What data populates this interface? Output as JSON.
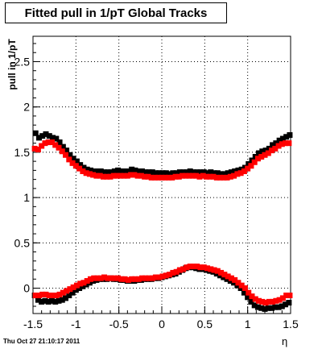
{
  "title": "Fitted pull in 1/pT  Global Tracks",
  "timestamp": "Thu Oct 27 21:10:17 2011",
  "chart_data": {
    "type": "scatter",
    "title": "Fitted pull in 1/pT  Global Tracks",
    "xlabel": "η",
    "ylabel": "pull in 1/pT",
    "xlim": [
      -1.5,
      1.5
    ],
    "ylim": [
      -0.28,
      2.78
    ],
    "x_ticks": [
      -1.5,
      -1,
      -0.5,
      0,
      0.5,
      1,
      1.5
    ],
    "x_tick_labels": [
      "-1.5",
      "-1",
      "-0.5",
      "0",
      "0.5",
      "1",
      "1.5"
    ],
    "y_ticks": [
      0,
      0.5,
      1,
      1.5,
      2,
      2.5
    ],
    "y_tick_labels": [
      "0",
      "0.5",
      "1",
      "1.5",
      "2",
      "2.5"
    ],
    "grid": true,
    "marker": "square",
    "series": [
      {
        "color": "#000000",
        "x": [
          -1.47,
          -1.43,
          -1.39,
          -1.35,
          -1.31,
          -1.27,
          -1.23,
          -1.19,
          -1.15,
          -1.11,
          -1.07,
          -1.03,
          -0.99,
          -0.95,
          -0.91,
          -0.87,
          -0.83,
          -0.79,
          -0.75,
          -0.71,
          -0.67,
          -0.63,
          -0.59,
          -0.55,
          -0.51,
          -0.47,
          -0.43,
          -0.39,
          -0.35,
          -0.31,
          -0.27,
          -0.23,
          -0.19,
          -0.15,
          -0.11,
          -0.07,
          -0.03,
          0.01,
          0.05,
          0.09,
          0.13,
          0.17,
          0.21,
          0.25,
          0.29,
          0.33,
          0.37,
          0.41,
          0.45,
          0.49,
          0.53,
          0.57,
          0.61,
          0.65,
          0.69,
          0.73,
          0.77,
          0.81,
          0.85,
          0.89,
          0.93,
          0.97,
          1.01,
          1.05,
          1.09,
          1.13,
          1.17,
          1.21,
          1.25,
          1.29,
          1.33,
          1.37,
          1.41,
          1.45,
          1.49
        ],
        "y": [
          1.71,
          1.66,
          1.68,
          1.7,
          1.68,
          1.66,
          1.65,
          1.61,
          1.56,
          1.52,
          1.47,
          1.43,
          1.4,
          1.36,
          1.33,
          1.31,
          1.3,
          1.29,
          1.29,
          1.29,
          1.28,
          1.28,
          1.28,
          1.29,
          1.3,
          1.29,
          1.29,
          1.29,
          1.31,
          1.3,
          1.29,
          1.29,
          1.28,
          1.28,
          1.28,
          1.27,
          1.27,
          1.27,
          1.27,
          1.26,
          1.27,
          1.27,
          1.28,
          1.28,
          1.28,
          1.29,
          1.28,
          1.28,
          1.28,
          1.28,
          1.27,
          1.28,
          1.27,
          1.27,
          1.26,
          1.26,
          1.27,
          1.28,
          1.29,
          1.3,
          1.31,
          1.33,
          1.37,
          1.41,
          1.45,
          1.49,
          1.51,
          1.52,
          1.54,
          1.58,
          1.6,
          1.63,
          1.65,
          1.67,
          1.69
        ]
      },
      {
        "color": "#ff0000",
        "x": [
          -1.48,
          -1.44,
          -1.4,
          -1.36,
          -1.32,
          -1.28,
          -1.24,
          -1.2,
          -1.16,
          -1.12,
          -1.08,
          -1.04,
          -1.0,
          -0.96,
          -0.92,
          -0.88,
          -0.84,
          -0.8,
          -0.76,
          -0.72,
          -0.68,
          -0.64,
          -0.6,
          -0.56,
          -0.52,
          -0.48,
          -0.44,
          -0.4,
          -0.36,
          -0.32,
          -0.28,
          -0.24,
          -0.2,
          -0.16,
          -0.12,
          -0.08,
          -0.04,
          0.0,
          0.04,
          0.08,
          0.12,
          0.16,
          0.2,
          0.24,
          0.28,
          0.32,
          0.36,
          0.4,
          0.44,
          0.48,
          0.52,
          0.56,
          0.6,
          0.64,
          0.68,
          0.72,
          0.76,
          0.8,
          0.84,
          0.88,
          0.92,
          0.96,
          1.0,
          1.04,
          1.08,
          1.12,
          1.16,
          1.2,
          1.24,
          1.28,
          1.32,
          1.36,
          1.4,
          1.44,
          1.48
        ],
        "y": [
          1.54,
          1.53,
          1.57,
          1.6,
          1.61,
          1.61,
          1.58,
          1.55,
          1.51,
          1.47,
          1.42,
          1.38,
          1.35,
          1.32,
          1.29,
          1.27,
          1.26,
          1.25,
          1.24,
          1.24,
          1.23,
          1.23,
          1.23,
          1.24,
          1.24,
          1.24,
          1.24,
          1.24,
          1.25,
          1.25,
          1.24,
          1.24,
          1.23,
          1.23,
          1.22,
          1.22,
          1.22,
          1.22,
          1.22,
          1.22,
          1.22,
          1.23,
          1.23,
          1.24,
          1.24,
          1.24,
          1.24,
          1.24,
          1.23,
          1.24,
          1.23,
          1.23,
          1.23,
          1.22,
          1.22,
          1.22,
          1.22,
          1.23,
          1.24,
          1.26,
          1.27,
          1.29,
          1.32,
          1.35,
          1.39,
          1.43,
          1.45,
          1.47,
          1.49,
          1.52,
          1.54,
          1.57,
          1.59,
          1.6,
          1.6
        ]
      },
      {
        "color": "#000000",
        "x": [
          -1.48,
          -1.44,
          -1.4,
          -1.36,
          -1.32,
          -1.28,
          -1.24,
          -1.2,
          -1.16,
          -1.12,
          -1.08,
          -1.04,
          -1.0,
          -0.96,
          -0.92,
          -0.88,
          -0.84,
          -0.8,
          -0.76,
          -0.72,
          -0.68,
          -0.64,
          -0.6,
          -0.56,
          -0.52,
          -0.48,
          -0.44,
          -0.4,
          -0.36,
          -0.32,
          -0.28,
          -0.24,
          -0.2,
          -0.16,
          -0.12,
          -0.08,
          -0.04,
          0.0,
          0.04,
          0.08,
          0.12,
          0.16,
          0.2,
          0.24,
          0.28,
          0.32,
          0.36,
          0.4,
          0.44,
          0.48,
          0.52,
          0.56,
          0.6,
          0.64,
          0.68,
          0.72,
          0.76,
          0.8,
          0.84,
          0.88,
          0.92,
          0.96,
          1.0,
          1.04,
          1.08,
          1.12,
          1.16,
          1.2,
          1.24,
          1.28,
          1.32,
          1.36,
          1.4,
          1.44,
          1.48
        ],
        "y": [
          -0.08,
          -0.13,
          -0.15,
          -0.14,
          -0.15,
          -0.14,
          -0.15,
          -0.14,
          -0.13,
          -0.11,
          -0.08,
          -0.05,
          -0.02,
          0.0,
          0.02,
          0.04,
          0.06,
          0.08,
          0.09,
          0.1,
          0.1,
          0.1,
          0.11,
          0.1,
          0.1,
          0.09,
          0.09,
          0.08,
          0.08,
          0.08,
          0.09,
          0.09,
          0.1,
          0.1,
          0.1,
          0.11,
          0.11,
          0.12,
          0.13,
          0.14,
          0.15,
          0.16,
          0.18,
          0.2,
          0.22,
          0.23,
          0.23,
          0.22,
          0.21,
          0.21,
          0.2,
          0.19,
          0.18,
          0.16,
          0.14,
          0.12,
          0.1,
          0.08,
          0.06,
          0.03,
          0.0,
          -0.05,
          -0.1,
          -0.15,
          -0.19,
          -0.21,
          -0.22,
          -0.23,
          -0.22,
          -0.22,
          -0.21,
          -0.21,
          -0.2,
          -0.18,
          -0.16
        ]
      },
      {
        "color": "#ff0000",
        "x": [
          -1.47,
          -1.43,
          -1.39,
          -1.35,
          -1.31,
          -1.27,
          -1.23,
          -1.19,
          -1.15,
          -1.11,
          -1.07,
          -1.03,
          -0.99,
          -0.95,
          -0.91,
          -0.87,
          -0.83,
          -0.79,
          -0.75,
          -0.71,
          -0.67,
          -0.63,
          -0.59,
          -0.55,
          -0.51,
          -0.47,
          -0.43,
          -0.39,
          -0.35,
          -0.31,
          -0.27,
          -0.23,
          -0.19,
          -0.15,
          -0.11,
          -0.07,
          -0.03,
          0.01,
          0.05,
          0.09,
          0.13,
          0.17,
          0.21,
          0.25,
          0.29,
          0.33,
          0.37,
          0.41,
          0.45,
          0.49,
          0.53,
          0.57,
          0.61,
          0.65,
          0.69,
          0.73,
          0.77,
          0.81,
          0.85,
          0.89,
          0.93,
          0.97,
          1.01,
          1.05,
          1.09,
          1.13,
          1.17,
          1.21,
          1.25,
          1.29,
          1.33,
          1.37,
          1.41,
          1.45,
          1.49
        ],
        "y": [
          -0.08,
          -0.08,
          -0.07,
          -0.07,
          -0.08,
          -0.08,
          -0.08,
          -0.07,
          -0.05,
          -0.03,
          -0.01,
          0.01,
          0.03,
          0.05,
          0.06,
          0.08,
          0.1,
          0.11,
          0.11,
          0.11,
          0.12,
          0.11,
          0.11,
          0.11,
          0.11,
          0.1,
          0.1,
          0.09,
          0.1,
          0.1,
          0.1,
          0.11,
          0.11,
          0.11,
          0.11,
          0.12,
          0.12,
          0.13,
          0.14,
          0.15,
          0.17,
          0.18,
          0.2,
          0.21,
          0.23,
          0.24,
          0.24,
          0.24,
          0.23,
          0.23,
          0.22,
          0.21,
          0.2,
          0.19,
          0.17,
          0.15,
          0.13,
          0.11,
          0.09,
          0.06,
          0.03,
          0.0,
          -0.05,
          -0.09,
          -0.12,
          -0.14,
          -0.15,
          -0.16,
          -0.15,
          -0.15,
          -0.14,
          -0.13,
          -0.11,
          -0.08,
          -0.08
        ]
      }
    ]
  }
}
